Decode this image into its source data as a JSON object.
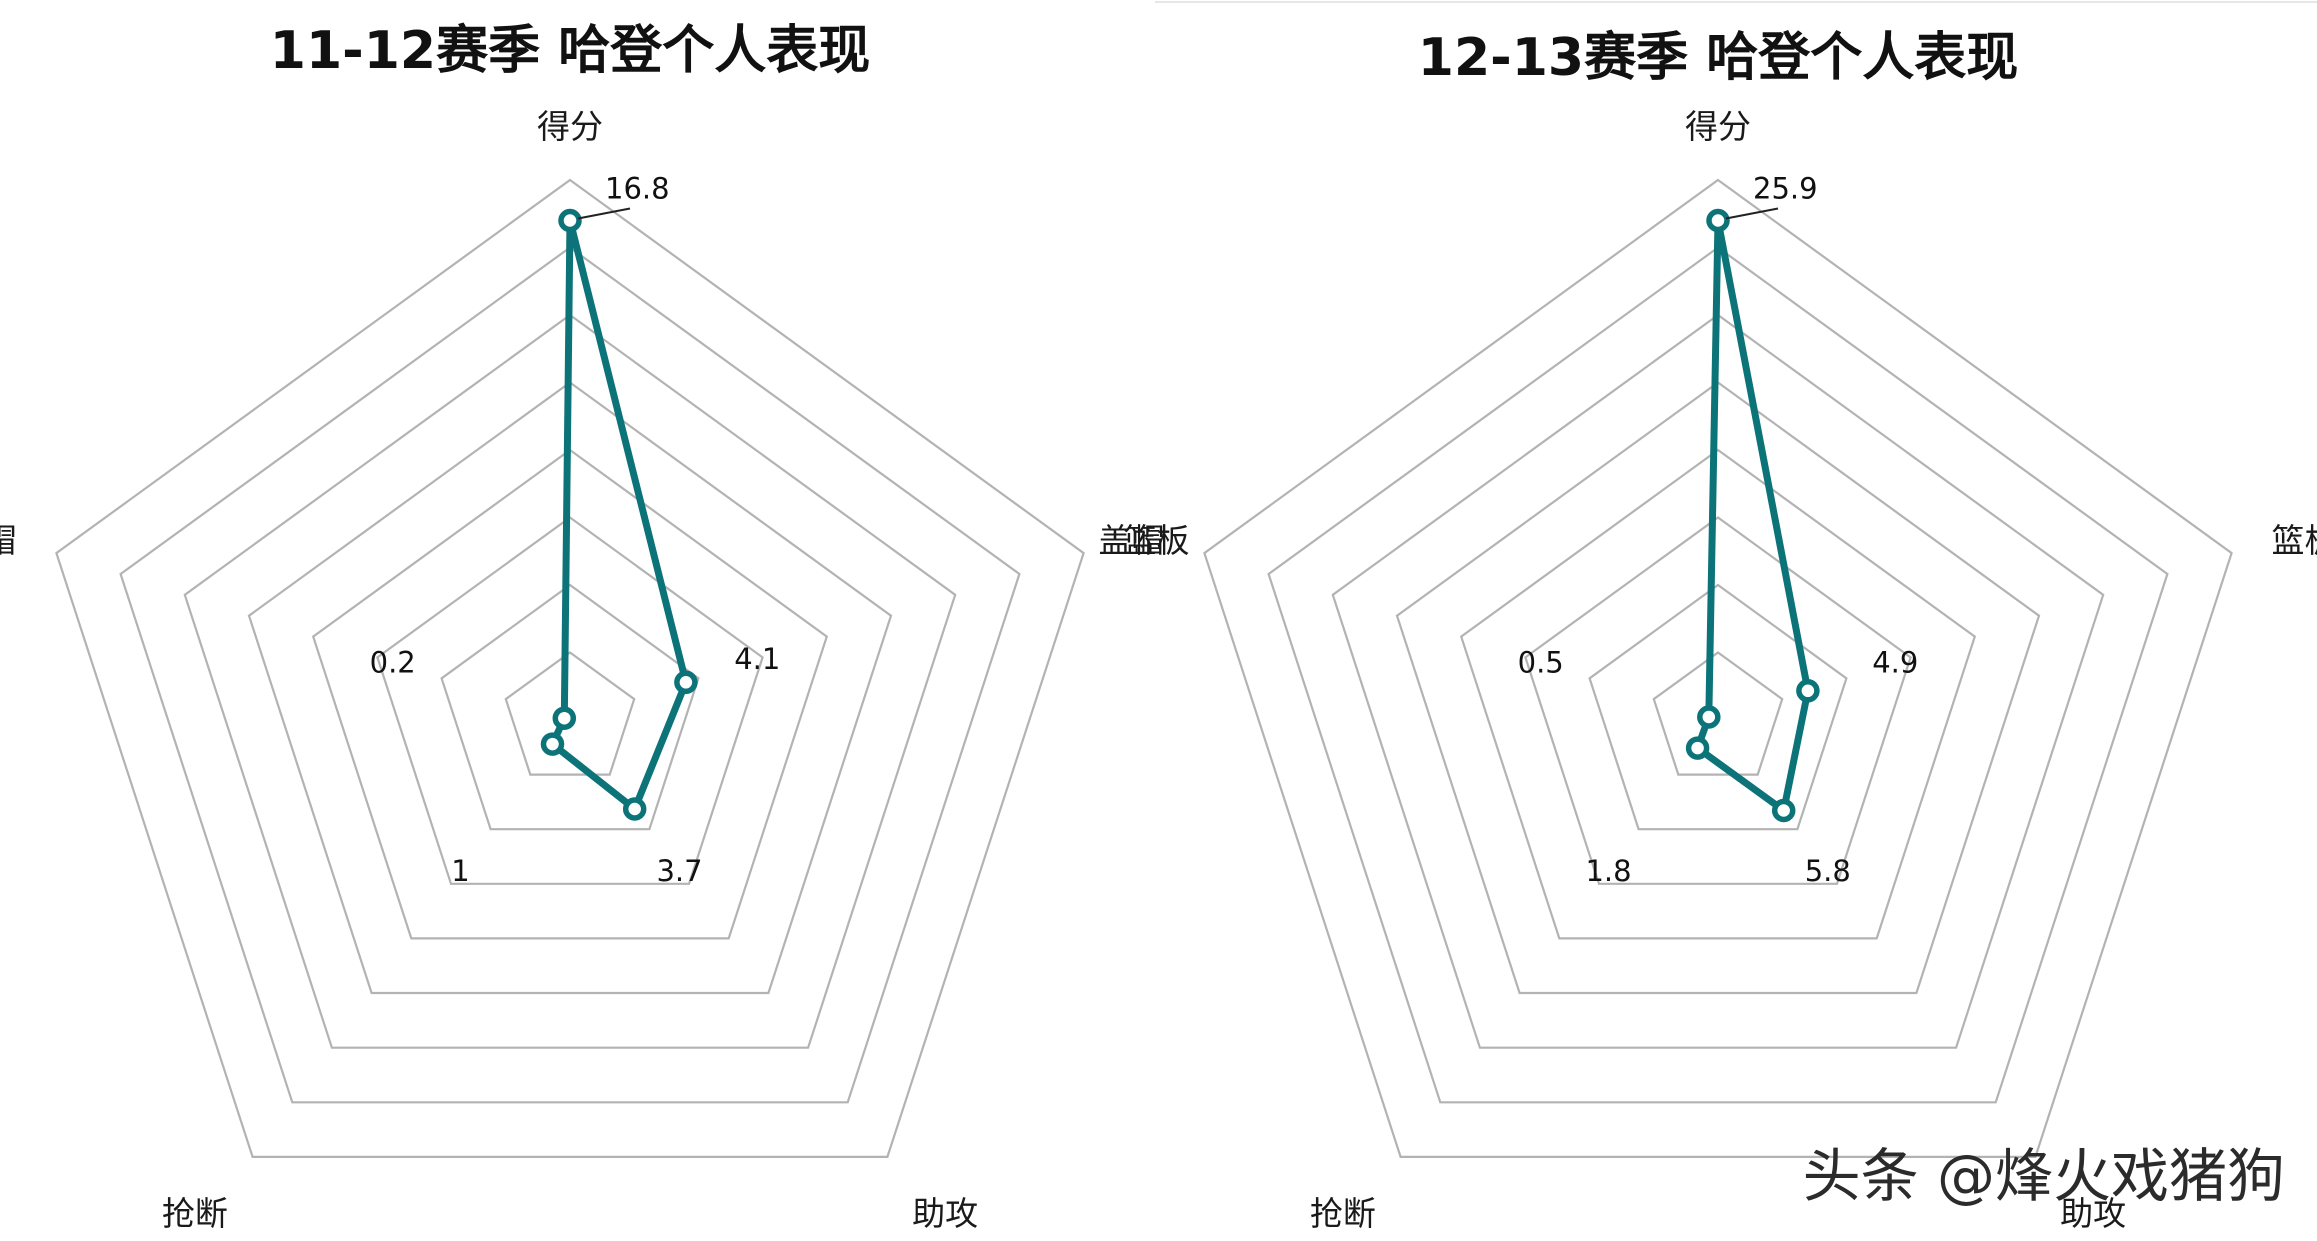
{
  "chart_data": [
    {
      "type": "radar",
      "title": "11-12赛季 哈登个人表现",
      "axes": [
        "得分",
        "篮板",
        "助攻",
        "抢断",
        "盖帽"
      ],
      "values": [
        16.8,
        4.1,
        3.7,
        1,
        0.2
      ],
      "value_labels": [
        "16.8",
        "4.1",
        "3.7",
        "1",
        "0.2"
      ],
      "grid_rings": 8,
      "grid": true,
      "legend": "none",
      "colors": {
        "series": "#0c7378",
        "grid": "#b3b3b3"
      }
    },
    {
      "type": "radar",
      "title": "12-13赛季 哈登个人表现",
      "axes": [
        "得分",
        "篮板",
        "助攻",
        "抢断",
        "盖帽"
      ],
      "values": [
        25.9,
        4.9,
        5.8,
        1.8,
        0.5
      ],
      "value_labels": [
        "25.9",
        "4.9",
        "5.8",
        "1.8",
        "0.5"
      ],
      "grid_rings": 8,
      "grid": true,
      "legend": "none",
      "colors": {
        "series": "#0c7378",
        "grid": "#b3b3b3"
      }
    }
  ],
  "watermark": "头条 @烽火戏猪狗"
}
